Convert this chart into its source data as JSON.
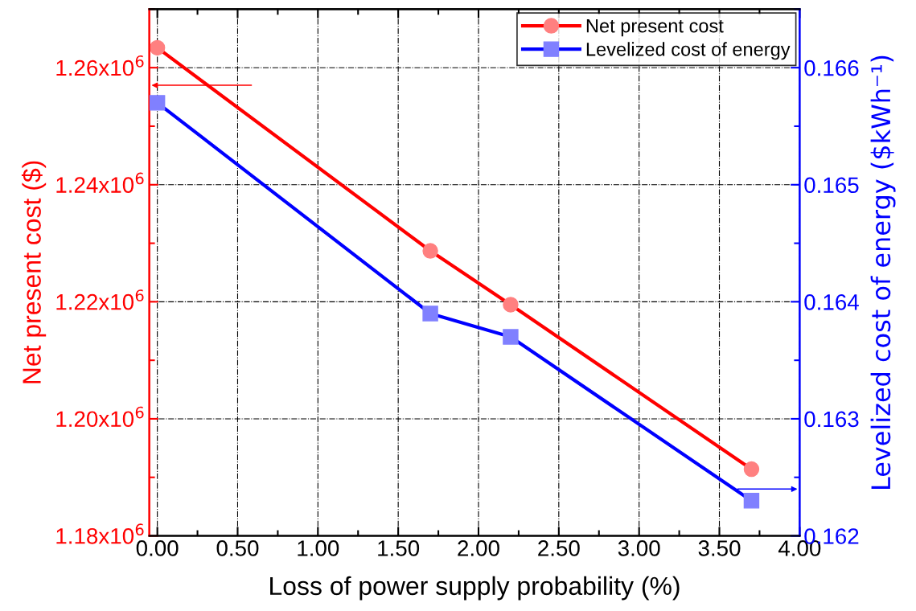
{
  "chart_data": {
    "type": "line",
    "xlabel": "Loss of power supply probability (%)",
    "ylabel": "Net present cost ($)",
    "y2label": "Levelized cost of energy ($kWh⁻¹)",
    "x": [
      0,
      1.7,
      2.2,
      3.7
    ],
    "series": [
      {
        "name": "Net present cost",
        "color": "#ff0000",
        "marker": "circle",
        "values": [
          1263400,
          1228700,
          1219500,
          1191400
        ]
      },
      {
        "name": "Levelized cost of energy",
        "color": "#0000ff",
        "marker": "square",
        "axis": "y2",
        "values": [
          0.1657,
          0.1639,
          0.1637,
          0.1623
        ]
      }
    ],
    "xlim": [
      -0.05,
      4.0
    ],
    "xticks": [
      {
        "value": 0,
        "label": "0.00"
      },
      {
        "value": 0.5,
        "label": "0.50"
      },
      {
        "value": 1,
        "label": "1.00"
      },
      {
        "value": 1.5,
        "label": "1.50"
      },
      {
        "value": 2,
        "label": "2.00"
      },
      {
        "value": 2.5,
        "label": "2.50"
      },
      {
        "value": 3,
        "label": "3.00"
      },
      {
        "value": 3.5,
        "label": "3.50"
      },
      {
        "value": 4,
        "label": "4.00"
      }
    ],
    "ylim": [
      1180000,
      1270000
    ],
    "yticks": [
      {
        "value": 1180000,
        "label": "1.18x10$^{6}$"
      },
      {
        "value": 1200000,
        "label": "1.20x10$^{6}$"
      },
      {
        "value": 1220000,
        "label": "1.22x10$^{6}$"
      },
      {
        "value": 1240000,
        "label": "1.24x10$^{6}$"
      },
      {
        "value": 1260000,
        "label": "1.26x10$^{6}$"
      }
    ],
    "y2lim": [
      0.162,
      0.1665
    ],
    "y2ticks": [
      0.162,
      0.163,
      0.164,
      0.165,
      0.166
    ],
    "grid": true,
    "legend": "top right",
    "line_style": "solid"
  }
}
